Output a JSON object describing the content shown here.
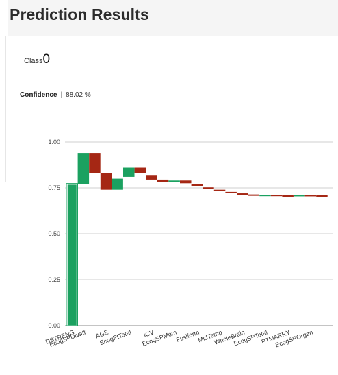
{
  "page": {
    "title": "Prediction Results",
    "class_label": "Class",
    "class_value": "0",
    "confidence_label": "Confidence",
    "confidence_separator": "|",
    "confidence_value": "88.02 %"
  },
  "chart_data": {
    "type": "waterfall",
    "title": "",
    "xlabel": "",
    "ylabel": "",
    "ylim": [
      0,
      1
    ],
    "yticks": [
      "0.00",
      "0.25",
      "0.50",
      "0.75",
      "1.00"
    ],
    "grid": true,
    "colors": {
      "increase": "#1ba160",
      "decrease": "#a52714"
    },
    "steps": [
      {
        "label": "DSTRENG",
        "start": 0.0,
        "end": 0.77
      },
      {
        "label": "EcogSPDivatt",
        "start": 0.77,
        "end": 0.94
      },
      {
        "label": "",
        "start": 0.94,
        "end": 0.83
      },
      {
        "label": "AGE",
        "start": 0.83,
        "end": 0.74
      },
      {
        "label": "",
        "start": 0.74,
        "end": 0.8
      },
      {
        "label": "EcogPtTotal",
        "start": 0.81,
        "end": 0.86
      },
      {
        "label": "",
        "start": 0.86,
        "end": 0.83
      },
      {
        "label": "ICV",
        "start": 0.82,
        "end": 0.795
      },
      {
        "label": "",
        "start": 0.795,
        "end": 0.78
      },
      {
        "label": "EcogSPMem",
        "start": 0.78,
        "end": 0.79
      },
      {
        "label": "",
        "start": 0.79,
        "end": 0.775
      },
      {
        "label": "Fusiform",
        "start": 0.77,
        "end": 0.758
      },
      {
        "label": "",
        "start": 0.753,
        "end": 0.745
      },
      {
        "label": "MidTemp",
        "start": 0.74,
        "end": 0.733
      },
      {
        "label": "",
        "start": 0.728,
        "end": 0.722
      },
      {
        "label": "WholeBrain",
        "start": 0.72,
        "end": 0.715
      },
      {
        "label": "",
        "start": 0.714,
        "end": 0.71
      },
      {
        "label": "EcogSPTotal",
        "start": 0.709,
        "end": 0.712
      },
      {
        "label": "",
        "start": 0.712,
        "end": 0.709
      },
      {
        "label": "PTMARRY",
        "start": 0.709,
        "end": 0.706
      },
      {
        "label": "",
        "start": 0.708,
        "end": 0.711
      },
      {
        "label": "EcogSPOrgan",
        "start": 0.711,
        "end": 0.709
      },
      {
        "label": "",
        "start": 0.709,
        "end": 0.707
      }
    ]
  }
}
